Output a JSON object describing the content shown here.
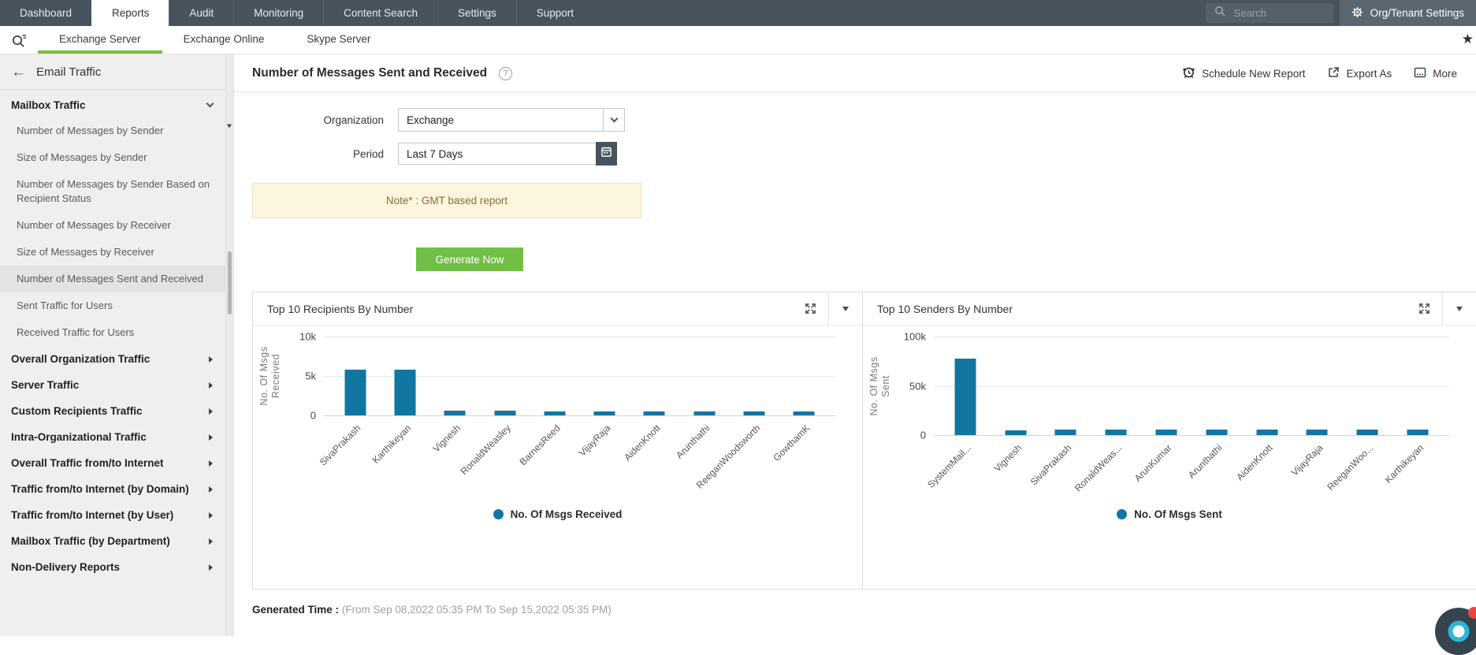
{
  "topnav": {
    "tabs": [
      {
        "label": "Dashboard",
        "active": false
      },
      {
        "label": "Reports",
        "active": true
      },
      {
        "label": "Audit",
        "active": false
      },
      {
        "label": "Monitoring",
        "active": false
      },
      {
        "label": "Content Search",
        "active": false
      },
      {
        "label": "Settings",
        "active": false
      },
      {
        "label": "Support",
        "active": false
      }
    ],
    "search_placeholder": "Search",
    "org_settings_label": "Org/Tenant Settings"
  },
  "tabbar": {
    "tabs": [
      {
        "label": "Exchange Server",
        "active": true
      },
      {
        "label": "Exchange Online",
        "active": false
      },
      {
        "label": "Skype Server",
        "active": false
      }
    ],
    "star_icon": "★"
  },
  "sidebar": {
    "back_icon": "←",
    "title": "Email Traffic",
    "mailbox_group": "Mailbox Traffic",
    "items": [
      {
        "label": "Number of Messages by Sender",
        "selected": false
      },
      {
        "label": "Size of Messages by Sender",
        "selected": false
      },
      {
        "label": "Number of Messages by Sender Based on Recipient Status",
        "selected": false
      },
      {
        "label": "Number of Messages by Receiver",
        "selected": false
      },
      {
        "label": "Size of Messages by Receiver",
        "selected": false
      },
      {
        "label": "Number of Messages Sent and Received",
        "selected": true
      },
      {
        "label": "Sent Traffic for Users",
        "selected": false
      },
      {
        "label": "Received Traffic for Users",
        "selected": false
      }
    ],
    "groups": [
      "Overall Organization Traffic",
      "Server Traffic",
      "Custom Recipients Traffic",
      "Intra-Organizational Traffic",
      "Overall Traffic from/to Internet",
      "Traffic from/to Internet (by Domain)",
      "Traffic from/to Internet (by User)",
      "Mailbox Traffic (by Department)",
      "Non-Delivery Reports"
    ]
  },
  "report": {
    "title": "Number of Messages Sent and Received",
    "help_icon": "?",
    "toolbar": {
      "schedule": "Schedule New Report",
      "export": "Export As",
      "more": "More"
    },
    "form": {
      "organization_label": "Organization",
      "organization_value": "Exchange",
      "period_label": "Period",
      "period_value": "Last 7 Days"
    },
    "note": "Note* : GMT based report",
    "generate_button": "Generate Now"
  },
  "chart_data": [
    {
      "type": "bar",
      "title": "Top 10 Recipients By Number",
      "categories": [
        "SivaPrakash",
        "Karthikeyan",
        "Vignesh",
        "RonaldWeasley",
        "BarnesReed",
        "VijayRaja",
        "AidenKnott",
        "Arunthathi",
        "ReeganWoodsworth",
        "GowthamK"
      ],
      "values": [
        5800,
        5850,
        600,
        600,
        500,
        500,
        500,
        500,
        500,
        500
      ],
      "xlabel": "",
      "ylabel": "No. Of Msgs Received",
      "ylim": [
        0,
        10000
      ],
      "yticks": [
        "10k",
        "5k",
        "0"
      ],
      "legend": "No. Of Msgs Received",
      "legend_position": "bottom",
      "grid": true,
      "bar_color": "#1176A2"
    },
    {
      "type": "bar",
      "title": "Top 10 Senders By Number",
      "categories": [
        "SystemMail...",
        "Vignesh",
        "SivaPrakash",
        "RonaldWeas...",
        "ArunKumar",
        "Arunthathi",
        "AidenKnott",
        "VijayRaja",
        "ReeganWoo...",
        "Karthikeyan"
      ],
      "values": [
        78000,
        5200,
        5400,
        5500,
        5500,
        5500,
        5800,
        5500,
        5800,
        5500
      ],
      "xlabel": "",
      "ylabel": "No. Of Msgs Sent",
      "ylim": [
        0,
        100000
      ],
      "yticks": [
        "100k",
        "50k",
        "0"
      ],
      "legend": "No. Of Msgs Sent",
      "legend_position": "bottom",
      "grid": true,
      "bar_color": "#1176A2"
    }
  ],
  "footer": {
    "generated_time_label": "Generated Time :",
    "generated_time_value": "(From Sep 08,2022 05:35 PM To Sep 15,2022 05:35 PM)"
  },
  "colors": {
    "nav_bg": "#47545E",
    "active_tab_underline": "#7CBE41",
    "generate_button_bg": "#71BF45",
    "bar_blue": "#1176A2",
    "note_bg": "#FDF6DF",
    "note_text": "#8A6D3B"
  }
}
